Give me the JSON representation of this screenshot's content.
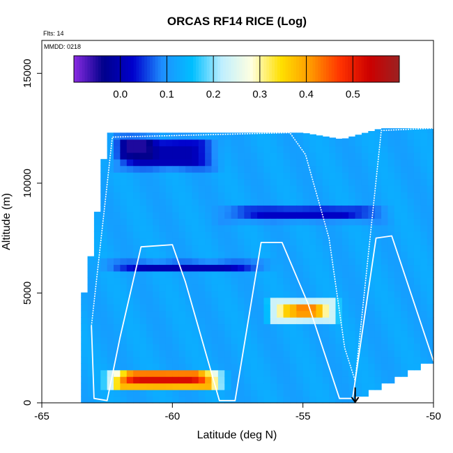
{
  "chart_data": {
    "type": "heatmap",
    "title": "ORCAS RF14 RICE (Log)",
    "xlabel": "Latitude (deg N)",
    "ylabel": "Altitude (m)",
    "xlim": [
      -65,
      -50
    ],
    "ylim": [
      0,
      16500
    ],
    "x_ticks": [
      -65,
      -60,
      -55,
      -50
    ],
    "x_tick_labels": [
      "-65",
      "-60",
      "-55",
      "-50"
    ],
    "y_ticks": [
      0,
      5000,
      10000,
      15000
    ],
    "y_tick_labels": [
      "0",
      "5000",
      "10000",
      "15000"
    ],
    "flights_note": "Flts: 14",
    "date_note": "MMDD: 0218",
    "colorbar": {
      "min": -0.1,
      "max": 0.6,
      "ticks": [
        0.0,
        0.1,
        0.2,
        0.3,
        0.4,
        0.5
      ],
      "tick_labels": [
        "0.0",
        "0.1",
        "0.2",
        "0.3",
        "0.4",
        "0.5"
      ],
      "colors": [
        "#8a2be2",
        "#00008b",
        "#0000cd",
        "#1e90ff",
        "#00bfff",
        "#bfefff",
        "#ffffe0",
        "#ffe000",
        "#ff9900",
        "#ff3300",
        "#cc0000",
        "#9b2222"
      ]
    },
    "background_value": 0.12,
    "field": {
      "lat_range": [
        -63.5,
        -50
      ],
      "profile_top": [
        [
          -63.5,
          4200
        ],
        [
          -63.0,
          7500
        ],
        [
          -62.5,
          12300
        ],
        [
          -58.0,
          12300
        ],
        [
          -55.0,
          12300
        ],
        [
          -53.5,
          12000
        ],
        [
          -52.0,
          12500
        ],
        [
          -50.0,
          12500
        ]
      ],
      "profile_bottom": [
        [
          -63.5,
          0
        ],
        [
          -57.0,
          0
        ],
        [
          -55.0,
          0
        ],
        [
          -53.3,
          0
        ],
        [
          -53.0,
          400
        ],
        [
          -52.0,
          900
        ],
        [
          -51.0,
          1500
        ],
        [
          -50.0,
          2000
        ]
      ],
      "blobs": [
        {
          "name": "upper-dry-band",
          "lat_min": -62.5,
          "lat_max": -58.0,
          "alt_min": 10500,
          "alt_max": 12200,
          "value": 0.0
        },
        {
          "name": "upper-dry-core",
          "lat_min": -62.2,
          "lat_max": -60.5,
          "alt_min": 11000,
          "alt_max": 12200,
          "value": -0.05
        },
        {
          "name": "mid-dry-streak",
          "lat_min": -58.5,
          "lat_max": -51.5,
          "alt_min": 8200,
          "alt_max": 9000,
          "value": 0.02
        },
        {
          "name": "lower-dry-band",
          "lat_min": -63.0,
          "lat_max": -56.0,
          "alt_min": 5900,
          "alt_max": 6500,
          "value": 0.0
        },
        {
          "name": "ice-region-mid",
          "lat_min": -56.5,
          "lat_max": -53.5,
          "alt_min": 3600,
          "alt_max": 4800,
          "value": 0.36
        },
        {
          "name": "ice-core-mid",
          "lat_min": -55.5,
          "lat_max": -54.3,
          "alt_min": 3900,
          "alt_max": 4600,
          "value": 0.42
        },
        {
          "name": "ice-region-low",
          "lat_min": -62.8,
          "lat_max": -57.8,
          "alt_min": 600,
          "alt_max": 1600,
          "value": 0.46
        },
        {
          "name": "ice-core-low",
          "lat_min": -62.4,
          "lat_max": -58.2,
          "alt_min": 700,
          "alt_max": 1200,
          "value": 0.52
        }
      ]
    },
    "flight_track": [
      [
        -63.1,
        3500
      ],
      [
        -63.0,
        200
      ],
      [
        -62.5,
        100
      ],
      [
        -62.0,
        3000
      ],
      [
        -61.2,
        7100
      ],
      [
        -60.0,
        7200
      ],
      [
        -59.5,
        5500
      ],
      [
        -58.2,
        100
      ],
      [
        -57.6,
        100
      ],
      [
        -56.6,
        7300
      ],
      [
        -55.8,
        7300
      ],
      [
        -54.8,
        4500
      ],
      [
        -53.6,
        200
      ],
      [
        -53.1,
        200
      ],
      [
        -52.2,
        7500
      ],
      [
        -51.6,
        7600
      ],
      [
        -50.0,
        1900
      ]
    ],
    "flight_track_upper": [
      [
        -63.1,
        3500
      ],
      [
        -62.3,
        12100
      ],
      [
        -55.5,
        12300
      ],
      [
        -54.9,
        11300
      ],
      [
        -54.0,
        7500
      ],
      [
        -53.4,
        2500
      ],
      [
        -53.0,
        1000
      ],
      [
        -52.0,
        12400
      ],
      [
        -50.0,
        12500
      ]
    ],
    "arrow_marker_lat": -53.0
  }
}
